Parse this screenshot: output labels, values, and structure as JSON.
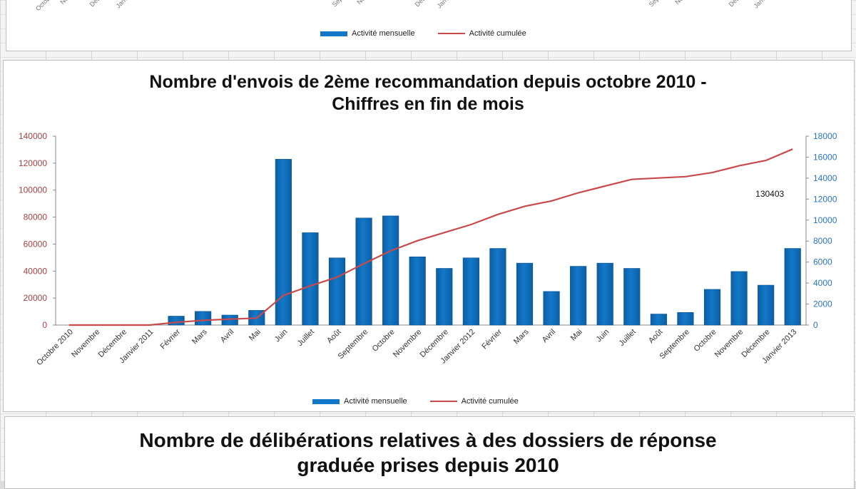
{
  "top_panel": {
    "legend_bar": "Activité mensuelle",
    "legend_line": "Activité cumulée",
    "tick_fragments": [
      "Octob",
      "No",
      "Déc",
      "Janv",
      "Sep",
      "No",
      "Déc",
      "Janv",
      "Sep",
      "No",
      "Déc",
      "Janv"
    ]
  },
  "chart_data": {
    "type": "bar",
    "title": "Nombre d'envois de 2ème recommandation depuis octobre 2010 - Chiffres en fin de mois",
    "title_line1": "Nombre d'envois de 2ème recommandation depuis octobre 2010 -",
    "title_line2": "Chiffres en fin de mois",
    "categories": [
      "Octobre 2010",
      "Novembre",
      "Décembre",
      "Janvier 2011",
      "Février",
      "Mars",
      "Avril",
      "Mai",
      "Juin",
      "Juillet",
      "Août",
      "Septembre",
      "Octobre",
      "Novembre",
      "Décembre",
      "Janvier 2012",
      "Février",
      "Mars",
      "Avril",
      "Mai",
      "Juin",
      "Juillet",
      "Août",
      "Septembre",
      "Octobre",
      "Novembre",
      "Décembre",
      "Janvier 2013"
    ],
    "series": [
      {
        "name": "Activité mensuelle",
        "type": "bar",
        "axis": "right",
        "values": [
          0,
          0,
          0,
          0,
          850,
          1300,
          950,
          1400,
          15800,
          8800,
          6400,
          10200,
          10400,
          6500,
          5400,
          6400,
          7300,
          5900,
          3200,
          5600,
          5900,
          5400,
          1050,
          1200,
          3400,
          5100,
          3800,
          7300
        ]
      },
      {
        "name": "Activité cumulée",
        "type": "line",
        "axis": "left",
        "values": [
          0,
          0,
          0,
          0,
          2000,
          3500,
          4400,
          5100,
          22000,
          29000,
          35500,
          45500,
          55000,
          62500,
          68500,
          74500,
          82000,
          88000,
          92000,
          98000,
          103000,
          108000,
          109000,
          110000,
          113000,
          118000,
          122000,
          130403
        ]
      }
    ],
    "y_left": {
      "min": 0,
      "max": 140000,
      "ticks": [
        0,
        20000,
        40000,
        60000,
        80000,
        100000,
        120000,
        140000
      ]
    },
    "y_right": {
      "min": 0,
      "max": 18000,
      "ticks": [
        0,
        2000,
        4000,
        6000,
        8000,
        10000,
        12000,
        14000,
        16000,
        18000
      ]
    },
    "annotation": "130403",
    "legend_position": "bottom",
    "colors": {
      "bar": "#1478c8",
      "line": "#c84a4a",
      "left_axis_text": "#a84040",
      "right_axis_text": "#2a74c0"
    }
  },
  "bottom_panel": {
    "title_line1": "Nombre de délibérations relatives à des dossiers de réponse",
    "title_line2": "graduée prises depuis 2010"
  }
}
